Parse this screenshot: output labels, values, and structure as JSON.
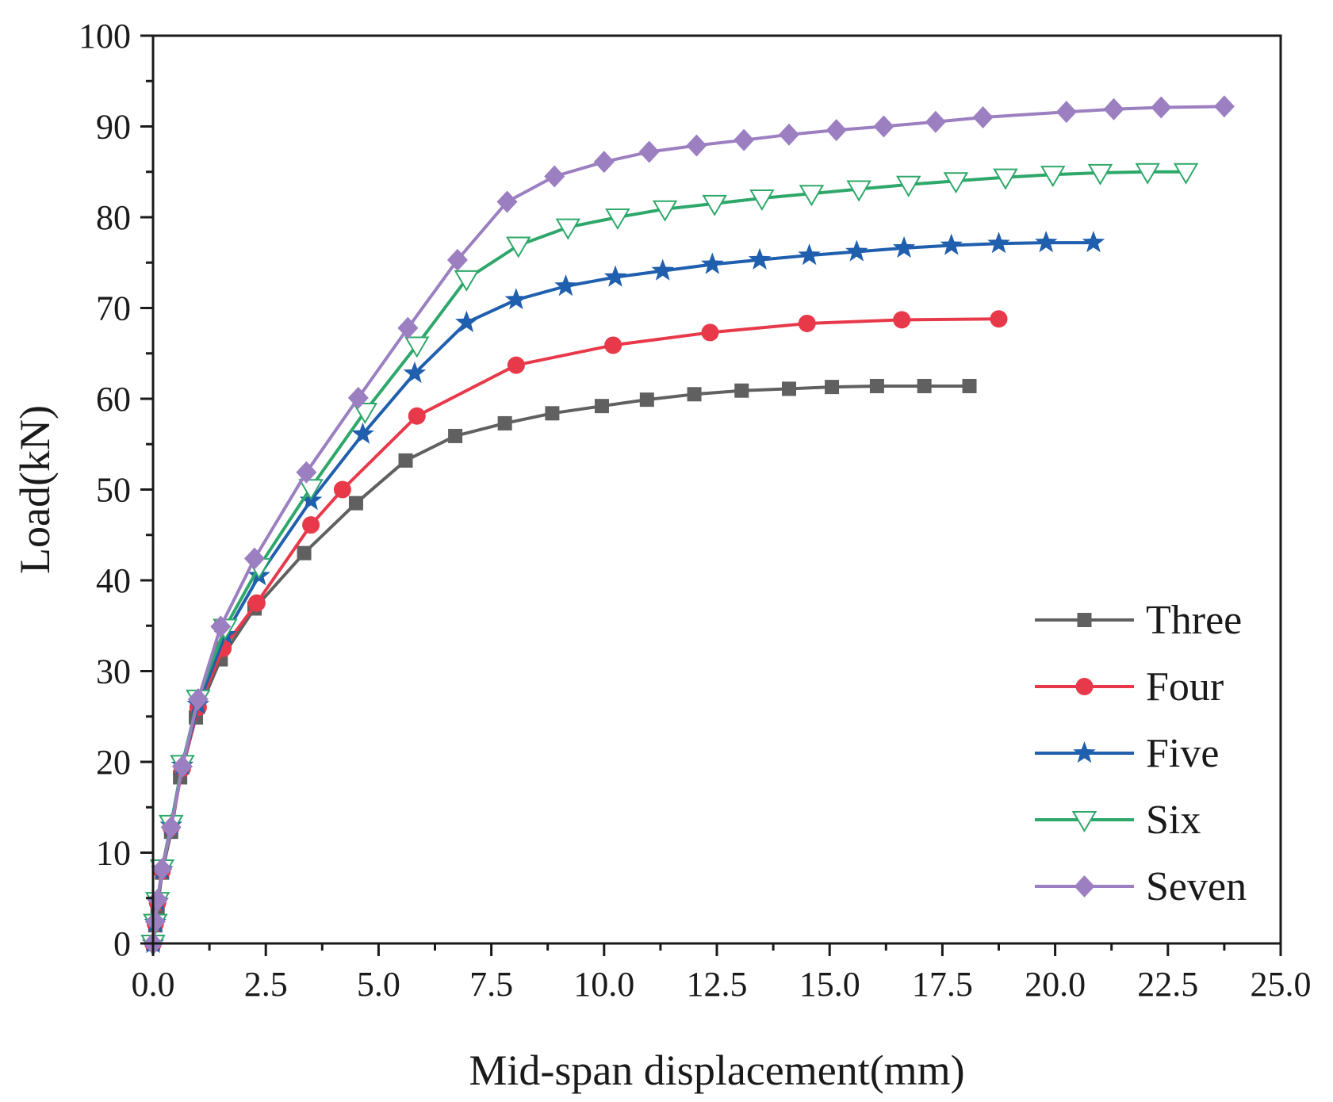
{
  "chart_data": {
    "type": "line",
    "title": "",
    "xlabel": "Mid-span displacement(mm)",
    "ylabel": "Load(kN)",
    "xlim": [
      0,
      25
    ],
    "ylim": [
      0,
      100
    ],
    "xticks": [
      "0.0",
      "2.5",
      "5.0",
      "7.5",
      "10.0",
      "12.5",
      "15.0",
      "17.5",
      "20.0",
      "22.5",
      "25.0"
    ],
    "yticks": [
      "0",
      "10",
      "20",
      "30",
      "40",
      "50",
      "60",
      "70",
      "80",
      "90",
      "100"
    ],
    "grid": false,
    "legend_position": "bottom-right",
    "series": [
      {
        "name": "Three",
        "color": "#606060",
        "marker": "square",
        "x": [
          0.0,
          0.05,
          0.1,
          0.2,
          0.4,
          0.6,
          0.95,
          1.5,
          2.25,
          3.35,
          4.5,
          5.6,
          6.7,
          7.8,
          8.85,
          9.95,
          10.95,
          12.0,
          13.05,
          14.1,
          15.05,
          16.05,
          17.1,
          18.1
        ],
        "y": [
          0.0,
          2.0,
          4.0,
          7.8,
          12.3,
          18.3,
          24.9,
          31.3,
          36.9,
          43.0,
          48.5,
          53.2,
          55.9,
          57.3,
          58.4,
          59.2,
          59.9,
          60.5,
          60.9,
          61.1,
          61.3,
          61.4,
          61.4,
          61.4
        ]
      },
      {
        "name": "Four",
        "color": "#e8394a",
        "marker": "circle",
        "x": [
          0.0,
          0.05,
          0.1,
          0.2,
          0.4,
          0.65,
          1.0,
          1.55,
          2.3,
          3.5,
          4.2,
          5.85,
          8.05,
          10.2,
          12.35,
          14.5,
          16.6,
          18.75
        ],
        "y": [
          0.0,
          2.2,
          4.5,
          8.0,
          12.8,
          19.3,
          26.0,
          32.5,
          37.5,
          46.1,
          50.0,
          58.1,
          63.7,
          65.9,
          67.3,
          68.3,
          68.7,
          68.8
        ]
      },
      {
        "name": "Five",
        "color": "#1f5fae",
        "marker": "star",
        "x": [
          0.0,
          0.05,
          0.1,
          0.2,
          0.4,
          0.65,
          1.0,
          1.6,
          2.35,
          3.5,
          4.65,
          5.8,
          6.95,
          8.05,
          9.15,
          10.25,
          11.3,
          12.4,
          13.45,
          14.55,
          15.6,
          16.65,
          17.7,
          18.75,
          19.8,
          20.85
        ],
        "y": [
          0.0,
          2.3,
          4.6,
          8.1,
          13.0,
          19.6,
          26.3,
          34.0,
          40.5,
          48.8,
          56.1,
          62.8,
          68.4,
          70.9,
          72.4,
          73.4,
          74.1,
          74.8,
          75.3,
          75.8,
          76.2,
          76.6,
          76.9,
          77.1,
          77.2,
          77.2
        ]
      },
      {
        "name": "Six",
        "color": "#2ea86a",
        "marker": "triangle-down",
        "x": [
          0.0,
          0.05,
          0.1,
          0.2,
          0.4,
          0.65,
          1.0,
          1.6,
          2.35,
          3.5,
          4.7,
          5.85,
          6.95,
          8.1,
          9.2,
          10.3,
          11.35,
          12.45,
          13.5,
          14.6,
          15.65,
          16.75,
          17.8,
          18.9,
          19.95,
          21.0,
          22.05,
          22.9
        ],
        "y": [
          0.0,
          2.3,
          4.7,
          8.3,
          13.2,
          19.8,
          27.0,
          34.8,
          41.5,
          50.2,
          58.6,
          65.9,
          73.2,
          76.9,
          78.9,
          80.0,
          80.9,
          81.5,
          82.1,
          82.6,
          83.1,
          83.6,
          84.0,
          84.4,
          84.7,
          84.9,
          85.0,
          85.0
        ]
      },
      {
        "name": "Seven",
        "color": "#9b7fc1",
        "marker": "diamond",
        "x": [
          0.0,
          0.05,
          0.1,
          0.2,
          0.4,
          0.65,
          1.0,
          1.5,
          2.25,
          3.4,
          4.55,
          5.65,
          6.75,
          7.85,
          8.9,
          10.0,
          11.0,
          12.05,
          13.1,
          14.1,
          15.15,
          16.2,
          17.35,
          18.4,
          20.25,
          21.3,
          22.35,
          23.75
        ],
        "y": [
          0.0,
          2.4,
          4.8,
          8.2,
          12.8,
          19.5,
          26.9,
          34.9,
          42.4,
          51.9,
          60.1,
          67.8,
          75.3,
          81.7,
          84.5,
          86.1,
          87.2,
          87.9,
          88.5,
          89.1,
          89.6,
          90.0,
          90.5,
          91.0,
          91.6,
          91.9,
          92.1,
          92.2
        ]
      }
    ]
  }
}
